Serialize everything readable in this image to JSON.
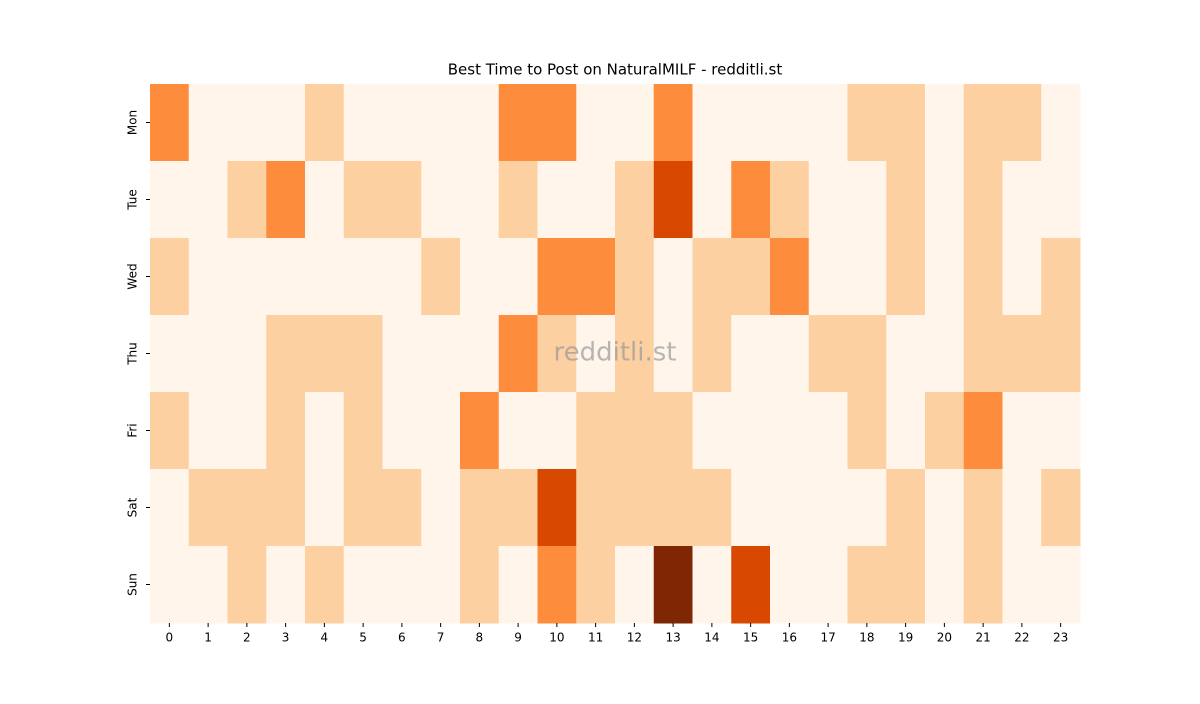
{
  "chart_data": {
    "type": "heatmap",
    "title": "Best Time to Post on NaturalMILF - redditli.st",
    "watermark": "redditli.st",
    "x": [
      0,
      1,
      2,
      3,
      4,
      5,
      6,
      7,
      8,
      9,
      10,
      11,
      12,
      13,
      14,
      15,
      16,
      17,
      18,
      19,
      20,
      21,
      22,
      23
    ],
    "y": [
      "Mon",
      "Tue",
      "Wed",
      "Thu",
      "Fri",
      "Sat",
      "Sun"
    ],
    "z": [
      [
        2,
        0,
        0,
        0,
        1,
        0,
        0,
        0,
        0,
        2,
        2,
        0,
        0,
        2,
        0,
        0,
        0,
        0,
        1,
        1,
        0,
        1,
        1,
        0
      ],
      [
        0,
        0,
        1,
        2,
        0,
        1,
        1,
        0,
        0,
        1,
        0,
        0,
        1,
        3,
        0,
        2,
        1,
        0,
        0,
        1,
        0,
        1,
        0,
        0
      ],
      [
        1,
        0,
        0,
        0,
        0,
        0,
        0,
        1,
        0,
        0,
        2,
        2,
        1,
        0,
        1,
        1,
        2,
        0,
        0,
        1,
        0,
        1,
        0,
        1
      ],
      [
        0,
        0,
        0,
        1,
        1,
        1,
        0,
        0,
        0,
        2,
        1,
        0,
        1,
        0,
        1,
        0,
        0,
        1,
        1,
        0,
        0,
        1,
        1,
        1
      ],
      [
        1,
        0,
        0,
        1,
        0,
        1,
        0,
        0,
        2,
        0,
        0,
        1,
        1,
        1,
        0,
        0,
        0,
        0,
        1,
        0,
        1,
        2,
        0,
        0
      ],
      [
        0,
        1,
        1,
        1,
        0,
        1,
        1,
        0,
        1,
        1,
        3,
        1,
        1,
        1,
        1,
        0,
        0,
        0,
        0,
        1,
        0,
        1,
        0,
        1
      ],
      [
        0,
        0,
        1,
        0,
        1,
        0,
        0,
        0,
        1,
        0,
        2,
        1,
        0,
        4,
        0,
        3,
        0,
        0,
        1,
        1,
        0,
        1,
        0,
        0
      ]
    ],
    "zlim": [
      0,
      4
    ],
    "colorscale": [
      "#fff5eb",
      "#fdd0a2",
      "#fd8d3c",
      "#d94801",
      "#7f2704"
    ]
  }
}
